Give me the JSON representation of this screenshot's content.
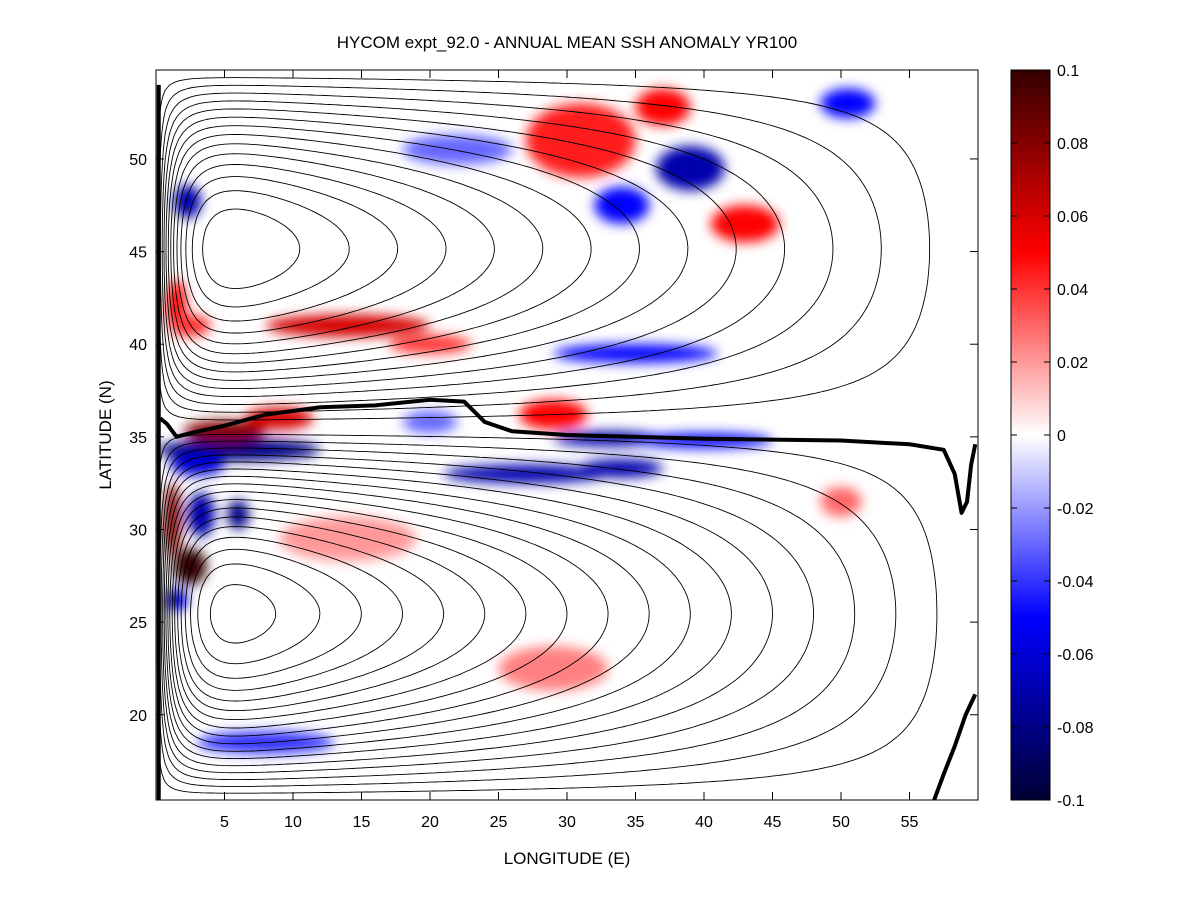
{
  "chart_data": {
    "type": "heatmap",
    "title": "HYCOM expt_92.0 - ANNUAL MEAN SSH ANOMALY YR100",
    "xlabel": "LONGITUDE (E)",
    "ylabel": "LATITUDE (N)",
    "xlim": [
      0,
      60
    ],
    "ylim": [
      15.4,
      54.8
    ],
    "xticks": [
      5,
      10,
      15,
      20,
      25,
      30,
      35,
      40,
      45,
      50,
      55
    ],
    "yticks": [
      20,
      25,
      30,
      35,
      40,
      45,
      50
    ],
    "colorbar": {
      "range": [
        -0.1,
        0.1
      ],
      "ticks": [
        0.1,
        0.08,
        0.06,
        0.04,
        0.02,
        0,
        -0.02,
        -0.04,
        -0.06,
        -0.08,
        -0.1
      ],
      "tick_labels": [
        "0.1",
        "0.08",
        "0.06",
        "0.04",
        "0.02",
        "0",
        "-0.02",
        "-0.04",
        "-0.06",
        "-0.08",
        "-0.1"
      ],
      "colormap": "blue-white-red",
      "colors": {
        "min": "#000033",
        "neg": "#0000ff",
        "zero": "#ffffff",
        "pos": "#ff0000",
        "max": "#330000"
      }
    },
    "anomaly_features": [
      {
        "lon": 2.5,
        "lat": 28.0,
        "rx": 1.2,
        "ry": 1.0,
        "value": 0.1
      },
      {
        "lon": 1.2,
        "lat": 30.5,
        "rx": 0.6,
        "ry": 2.0,
        "value": 0.08
      },
      {
        "lon": 1.5,
        "lat": 26.2,
        "rx": 0.8,
        "ry": 0.6,
        "value": -0.06
      },
      {
        "lon": 3.3,
        "lat": 30.8,
        "rx": 1.0,
        "ry": 1.2,
        "value": -0.07
      },
      {
        "lon": 6.0,
        "lat": 30.8,
        "rx": 0.8,
        "ry": 0.8,
        "value": -0.08
      },
      {
        "lon": 6.0,
        "lat": 34.3,
        "rx": 6.0,
        "ry": 0.6,
        "value": -0.08
      },
      {
        "lon": 3.0,
        "lat": 33.5,
        "rx": 2.0,
        "ry": 0.6,
        "value": -0.06
      },
      {
        "lon": 5.0,
        "lat": 35.3,
        "rx": 3.0,
        "ry": 0.6,
        "value": 0.08
      },
      {
        "lon": 9.0,
        "lat": 36.0,
        "rx": 2.5,
        "ry": 0.6,
        "value": 0.06
      },
      {
        "lon": 29.0,
        "lat": 36.2,
        "rx": 2.5,
        "ry": 0.8,
        "value": 0.05
      },
      {
        "lon": 20.0,
        "lat": 35.8,
        "rx": 2.0,
        "ry": 0.6,
        "value": -0.03
      },
      {
        "lon": 27.0,
        "lat": 33.0,
        "rx": 6.0,
        "ry": 0.5,
        "value": -0.07
      },
      {
        "lon": 34.0,
        "lat": 33.3,
        "rx": 3.0,
        "ry": 0.5,
        "value": -0.07
      },
      {
        "lon": 33.0,
        "lat": 34.9,
        "rx": 4.0,
        "ry": 0.4,
        "value": -0.07
      },
      {
        "lon": 40.0,
        "lat": 34.8,
        "rx": 5.0,
        "ry": 0.4,
        "value": -0.05
      },
      {
        "lon": 14.0,
        "lat": 41.0,
        "rx": 6.0,
        "ry": 0.6,
        "value": 0.06
      },
      {
        "lon": 20.0,
        "lat": 40.0,
        "rx": 3.0,
        "ry": 0.5,
        "value": 0.04
      },
      {
        "lon": 1.5,
        "lat": 42.0,
        "rx": 0.7,
        "ry": 1.5,
        "value": 0.05
      },
      {
        "lon": 2.5,
        "lat": 41.0,
        "rx": 1.5,
        "ry": 0.6,
        "value": 0.04
      },
      {
        "lon": 35.0,
        "lat": 39.5,
        "rx": 6.0,
        "ry": 0.5,
        "value": -0.05
      },
      {
        "lon": 2.3,
        "lat": 47.7,
        "rx": 1.0,
        "ry": 0.9,
        "value": -0.07
      },
      {
        "lon": 31.0,
        "lat": 51.0,
        "rx": 4.0,
        "ry": 2.0,
        "value": 0.045
      },
      {
        "lon": 37.0,
        "lat": 52.8,
        "rx": 2.0,
        "ry": 1.0,
        "value": 0.05
      },
      {
        "lon": 39.0,
        "lat": 49.5,
        "rx": 2.5,
        "ry": 1.2,
        "value": -0.07
      },
      {
        "lon": 34.0,
        "lat": 47.5,
        "rx": 2.0,
        "ry": 1.0,
        "value": -0.05
      },
      {
        "lon": 43.0,
        "lat": 46.5,
        "rx": 2.5,
        "ry": 1.0,
        "value": 0.05
      },
      {
        "lon": 50.5,
        "lat": 53.0,
        "rx": 2.0,
        "ry": 0.8,
        "value": -0.05
      },
      {
        "lon": 22.0,
        "lat": 50.5,
        "rx": 4.0,
        "ry": 0.8,
        "value": -0.03
      },
      {
        "lon": 29.0,
        "lat": 22.5,
        "rx": 4.0,
        "ry": 1.2,
        "value": 0.025
      },
      {
        "lon": 8.0,
        "lat": 18.5,
        "rx": 5.0,
        "ry": 0.6,
        "value": -0.04
      },
      {
        "lon": 14.0,
        "lat": 29.5,
        "rx": 5.0,
        "ry": 1.2,
        "value": 0.02
      },
      {
        "lon": 50.0,
        "lat": 31.5,
        "rx": 1.5,
        "ry": 0.8,
        "value": 0.03
      }
    ],
    "thick_contours": [
      [
        [
          0.3,
          36.0
        ],
        [
          0.8,
          35.7
        ],
        [
          1.5,
          35.0
        ],
        [
          2.5,
          35.2
        ],
        [
          5,
          35.6
        ],
        [
          8,
          36.2
        ],
        [
          12,
          36.6
        ],
        [
          16,
          36.7
        ],
        [
          20,
          37.0
        ],
        [
          22.5,
          36.9
        ],
        [
          24,
          35.8
        ],
        [
          26,
          35.3
        ],
        [
          30,
          35.1
        ],
        [
          35,
          35.0
        ],
        [
          40,
          34.9
        ],
        [
          45,
          34.85
        ],
        [
          50,
          34.8
        ],
        [
          55,
          34.6
        ],
        [
          57.5,
          34.3
        ],
        [
          58.3,
          33.0
        ],
        [
          58.8,
          30.9
        ],
        [
          59.2,
          31.5
        ],
        [
          59.5,
          33.5
        ],
        [
          59.8,
          34.6
        ]
      ],
      [
        [
          56.8,
          15.4
        ],
        [
          57.5,
          16.8
        ],
        [
          58.3,
          18.3
        ],
        [
          59.1,
          20.0
        ],
        [
          59.8,
          21.1
        ]
      ],
      [
        [
          0.2,
          15.4
        ],
        [
          0.2,
          54.0
        ]
      ]
    ]
  }
}
